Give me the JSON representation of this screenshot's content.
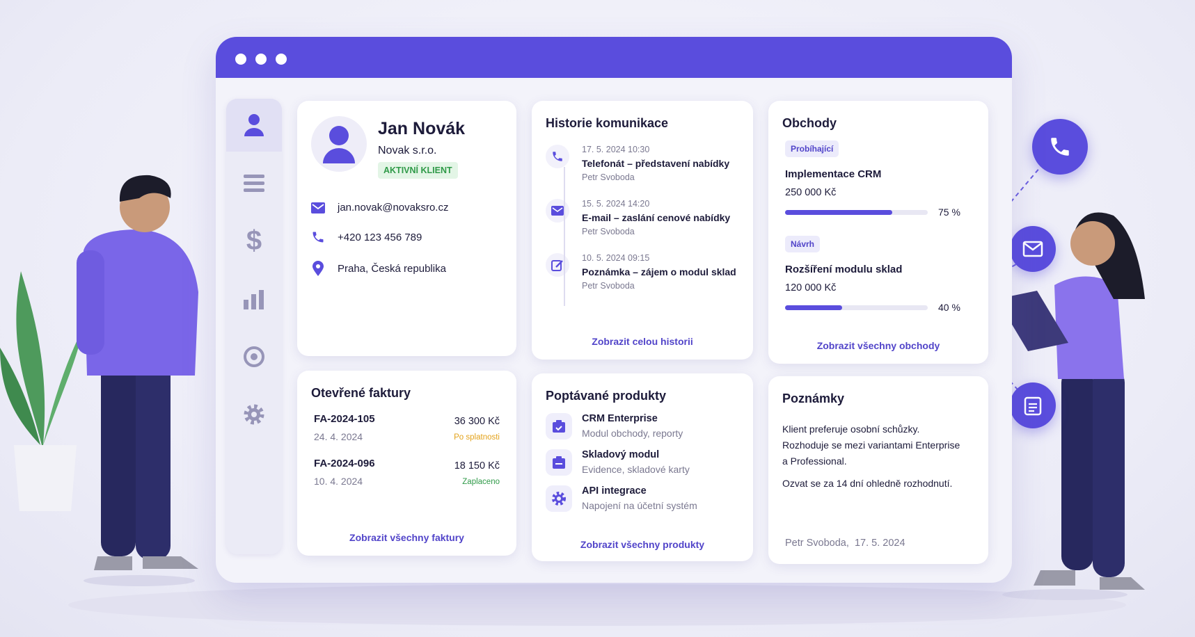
{
  "profile": {
    "name": "Jan Novák",
    "company": "Novak s.r.o.",
    "status": "AKTIVNÍ KLIENT",
    "email": "jan.novak@novaksro.cz",
    "phone": "+420 123 456 789",
    "location": "Praha, Česká republika"
  },
  "history": {
    "title": "Historie komunikace",
    "items": [
      {
        "datetime": "17. 5. 2024 10:30",
        "subject": "Telefonát – představení nabídky",
        "author": "Petr Svoboda"
      },
      {
        "datetime": "15. 5. 2024 14:20",
        "subject": "E-mail – zaslání cenové nabídky",
        "author": "Petr Svoboda"
      },
      {
        "datetime": "10. 5. 2024 09:15",
        "subject": "Poznámka – zájem o modul sklad",
        "author": "Petr Svoboda"
      }
    ],
    "link": "Zobrazit celou historii"
  },
  "deals": {
    "title": "Obchody",
    "items": [
      {
        "stage": "Probíhající",
        "name": "Implementace CRM",
        "amount": "250 000 Kč",
        "progress": {
          "value": 75,
          "label": "75 %"
        }
      },
      {
        "stage": "Návrh",
        "name": "Rozšíření modulu sklad",
        "amount": "120 000 Kč",
        "progress": {
          "value": 40,
          "label": "40 %"
        }
      }
    ],
    "link": "Zobrazit všechny obchody"
  },
  "invoices": {
    "title": "Otevřené faktury",
    "items": [
      {
        "number": "FA-2024-105",
        "date": "24. 4. 2024",
        "amount": "36 300 Kč",
        "status": "Po splatnosti"
      },
      {
        "number": "FA-2024-096",
        "date": "10. 4. 2024",
        "amount": "18 150 Kč",
        "status": "Zaplaceno"
      }
    ],
    "link": "Zobrazit všechny faktury"
  },
  "products": {
    "title": "Poptávané produkty",
    "items": [
      {
        "name": "CRM Enterprise",
        "description": "Modul obchody, reporty"
      },
      {
        "name": "Skladový modul",
        "description": "Evidence, skladové karty"
      },
      {
        "name": "API integrace",
        "description": "Napojení na účetní systém"
      }
    ],
    "link": "Zobrazit všechny produkty"
  },
  "notes": {
    "title": "Poznámky",
    "lines": [
      "Klient preferuje osobní schůzky.",
      "Rozhoduje se mezi variantami Enterprise",
      "a Professional.",
      "Ozvat se za 14 dní ohledně rozhodnutí."
    ],
    "signature": "Petr Svoboda,  17. 5. 2024"
  }
}
